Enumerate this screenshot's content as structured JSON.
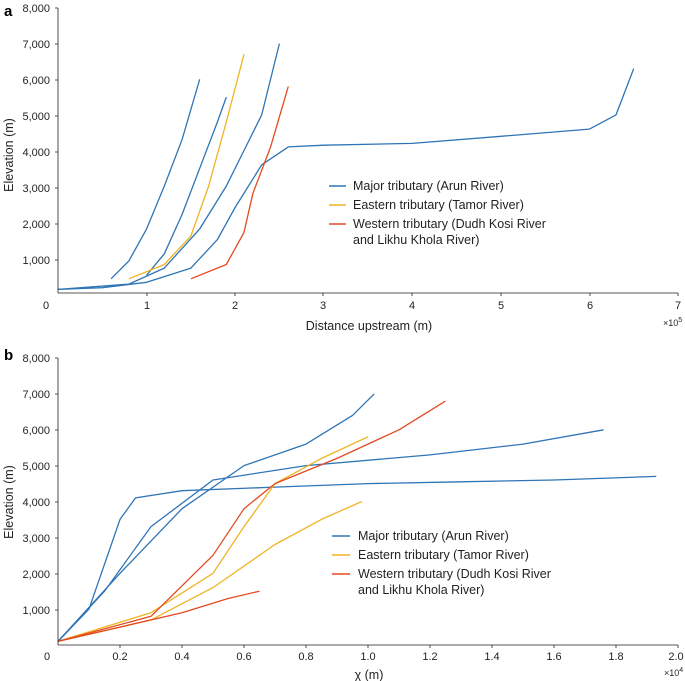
{
  "colors": {
    "major": "#2e75b6",
    "eastern": "#f0b323",
    "western": "#e34a20",
    "axis": "#231f20"
  },
  "chart_data": [
    {
      "panel": "a",
      "type": "line",
      "xlabel": "Distance upstream (m)",
      "ylabel": "Elevation (m)",
      "x_multiplier": "×10",
      "x_multiplier_exp": "5",
      "xlim": [
        0,
        7
      ],
      "ylim": [
        0,
        8000
      ],
      "xticks": [
        "0",
        "1",
        "2",
        "3",
        "4",
        "5",
        "6",
        "7"
      ],
      "yticks": [
        "1,000",
        "2,000",
        "3,000",
        "4,000",
        "5,000",
        "6,000",
        "7,000",
        "8,000"
      ],
      "legend": [
        {
          "key": "major",
          "lines": [
            "Major tributary (Arun River)"
          ]
        },
        {
          "key": "eastern",
          "lines": [
            "Eastern tributary (Tamor River)"
          ]
        },
        {
          "key": "western",
          "lines": [
            "Western tributary (Dudh Kosi River",
            "and Likhu Khola River)"
          ]
        }
      ],
      "series": [
        {
          "name": "Major tributary (Arun River)",
          "key": "major",
          "x": [
            0,
            0.5,
            1.0,
            1.5,
            1.8,
            2.0,
            2.3,
            2.6,
            3.0,
            4.0,
            5.0,
            6.0,
            6.3,
            6.5
          ],
          "y": [
            100,
            150,
            300,
            700,
            1500,
            2400,
            3600,
            4100,
            4150,
            4200,
            4400,
            4600,
            5000,
            6300
          ]
        },
        {
          "name": "Major tributary (Arun River)",
          "key": "major",
          "x": [
            0,
            0.8,
            1.2,
            1.6,
            1.9,
            2.1,
            2.3,
            2.5
          ],
          "y": [
            100,
            250,
            700,
            1800,
            3000,
            4000,
            5000,
            7000
          ]
        },
        {
          "name": "Major tributary (Arun River)",
          "key": "major",
          "x": [
            0.6,
            0.8,
            1.0,
            1.2,
            1.4,
            1.6
          ],
          "y": [
            400,
            900,
            1800,
            3000,
            4300,
            6000
          ]
        },
        {
          "name": "Major tributary (Arun River)",
          "key": "major",
          "x": [
            1.0,
            1.2,
            1.4,
            1.6,
            1.8,
            1.9
          ],
          "y": [
            500,
            1100,
            2200,
            3500,
            4800,
            5500
          ]
        },
        {
          "name": "Eastern tributary (Tamor River)",
          "key": "eastern",
          "x": [
            0.8,
            1.2,
            1.5,
            1.7,
            1.9,
            2.1
          ],
          "y": [
            400,
            800,
            1600,
            3000,
            4800,
            6700
          ]
        },
        {
          "name": "Western tributary (Dudh Kosi River and Likhu Khola River)",
          "key": "western",
          "x": [
            1.5,
            1.9,
            2.1,
            2.2,
            2.4,
            2.6
          ],
          "y": [
            400,
            800,
            1700,
            2800,
            4100,
            5800
          ]
        }
      ]
    },
    {
      "panel": "b",
      "type": "line",
      "xlabel": "χ (m)",
      "ylabel": "Elevation (m)",
      "x_multiplier": "×10",
      "x_multiplier_exp": "4",
      "xlim": [
        0,
        2.0
      ],
      "ylim": [
        0,
        8000
      ],
      "xticks": [
        "0",
        "0.2",
        "0.4",
        "0.6",
        "0.8",
        "1.0",
        "1.2",
        "1.4",
        "1.6",
        "1.8",
        "2.0"
      ],
      "yticks": [
        "1,000",
        "2,000",
        "3,000",
        "4,000",
        "5,000",
        "6,000",
        "7,000",
        "8,000"
      ],
      "legend": [
        {
          "key": "major",
          "lines": [
            "Major tributary (Arun River)"
          ]
        },
        {
          "key": "eastern",
          "lines": [
            "Eastern tributary (Tamor River)"
          ]
        },
        {
          "key": "western",
          "lines": [
            "Western tributary (Dudh Kosi River",
            "and Likhu Khola River)"
          ]
        }
      ],
      "series": [
        {
          "name": "Major tributary (Arun River)",
          "key": "major",
          "x": [
            0,
            0.1,
            0.2,
            0.25,
            0.4,
            0.7,
            1.0,
            1.3,
            1.6,
            1.93
          ],
          "y": [
            100,
            1000,
            3500,
            4100,
            4300,
            4400,
            4500,
            4550,
            4600,
            4700
          ]
        },
        {
          "name": "Major tributary (Arun River)",
          "key": "major",
          "x": [
            0,
            0.15,
            0.3,
            0.5,
            0.8,
            1.2,
            1.5,
            1.76
          ],
          "y": [
            100,
            1500,
            3300,
            4600,
            5000,
            5300,
            5600,
            6000
          ]
        },
        {
          "name": "Major tributary (Arun River)",
          "key": "major",
          "x": [
            0,
            0.2,
            0.4,
            0.6,
            0.8,
            0.95,
            1.02
          ],
          "y": [
            100,
            2000,
            3800,
            5000,
            5600,
            6400,
            7000
          ]
        },
        {
          "name": "Eastern tributary (Tamor River)",
          "key": "eastern",
          "x": [
            0,
            0.3,
            0.5,
            0.6,
            0.7,
            0.85,
            1.0
          ],
          "y": [
            100,
            900,
            2000,
            3300,
            4500,
            5200,
            5800
          ]
        },
        {
          "name": "Eastern tributary (Tamor River)",
          "key": "eastern",
          "x": [
            0,
            0.3,
            0.5,
            0.7,
            0.85,
            0.98
          ],
          "y": [
            100,
            700,
            1600,
            2800,
            3500,
            4000
          ]
        },
        {
          "name": "Western tributary (Dudh Kosi River and Likhu Khola River)",
          "key": "western",
          "x": [
            0,
            0.3,
            0.5,
            0.6,
            0.7,
            0.9,
            1.1,
            1.25
          ],
          "y": [
            100,
            800,
            2500,
            3800,
            4500,
            5200,
            6000,
            6800
          ]
        },
        {
          "name": "Western tributary (Dudh Kosi River and Likhu Khola River)",
          "key": "western",
          "x": [
            0,
            0.2,
            0.4,
            0.55,
            0.65
          ],
          "y": [
            100,
            500,
            900,
            1300,
            1500
          ]
        }
      ]
    }
  ]
}
